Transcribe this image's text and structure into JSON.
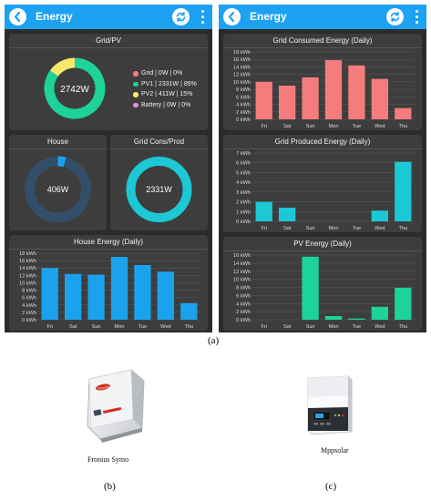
{
  "screens": [
    {
      "title": "Energy",
      "donuts": [
        {
          "title": "Grid/PV",
          "center": "2742W",
          "segments": [
            {
              "label": "Grid",
              "value": 0,
              "color": "#f47c7c"
            },
            {
              "label": "PV1",
              "value": 85,
              "color": "#1dd39a"
            },
            {
              "label": "PV2",
              "value": 15,
              "color": "#f7e76b"
            },
            {
              "label": "Battery",
              "value": 0,
              "color": "#e48ee8"
            }
          ],
          "legend": [
            "Grid | 0W | 0%",
            "PV1 | 2331W | 85%",
            "PV2 | 411W | 15%",
            "Battery | 0W | 0%"
          ]
        },
        {
          "title": "House",
          "center": "406W",
          "segments": [
            {
              "label": "House",
              "value": 4,
              "color": "#1aa3ec"
            },
            {
              "label": "Rest",
              "value": 96,
              "color": "#334e68"
            }
          ]
        },
        {
          "title": "Grid Cons/Prod",
          "center": "2331W",
          "segments": [
            {
              "label": "Grid",
              "value": 100,
              "color": "#1cc8d4"
            }
          ]
        }
      ]
    },
    {
      "title": "Energy"
    }
  ],
  "chart_data": [
    {
      "type": "bar",
      "title": "House Energy (Daily)",
      "categories": [
        "Fri",
        "Sat",
        "Sun",
        "Mon",
        "Tue",
        "Wed",
        "Thu"
      ],
      "values": [
        14,
        12.4,
        12.2,
        17,
        14.8,
        13,
        4.5
      ],
      "ylim": [
        0,
        18
      ],
      "yticks": [
        "0 kWh",
        "2 kWh",
        "4 kWh",
        "6 kWh",
        "8 kWh",
        "10 kWh",
        "12 kWh",
        "14 kWh",
        "16 kWh",
        "18 kWh"
      ],
      "color": "#1aa3ec",
      "grid": true
    },
    {
      "type": "bar",
      "title": "Grid Consumed Energy (Daily)",
      "categories": [
        "Fri",
        "Sat",
        "Sun",
        "Mon",
        "Tue",
        "Wed",
        "Thu"
      ],
      "values": [
        10,
        9,
        11.2,
        15.8,
        14.4,
        10.8,
        3
      ],
      "ylim": [
        0,
        18
      ],
      "yticks": [
        "0 kWh",
        "2 kWh",
        "4 kWh",
        "6 kWh",
        "8 kWh",
        "10 kWh",
        "12 kWh",
        "14 kWh",
        "16 kWh",
        "18 kWh"
      ],
      "color": "#f47c7c",
      "grid": true
    },
    {
      "type": "bar",
      "title": "Grid Produced Energy (Daily)",
      "categories": [
        "Fri",
        "Sat",
        "Sun",
        "Mon",
        "Tue",
        "Wed",
        "Thu"
      ],
      "values": [
        2,
        1.4,
        0,
        0,
        0,
        1.1,
        6.1
      ],
      "ylim": [
        0,
        7
      ],
      "yticks": [
        "0 kWh",
        "1 kWh",
        "2 kWh",
        "3 kWh",
        "4 kWh",
        "5 kWh",
        "6 kWh",
        "7 kWh"
      ],
      "color": "#1cc8d4",
      "grid": true
    },
    {
      "type": "bar",
      "title": "PV Energy (Daily)",
      "categories": [
        "Fri",
        "Sat",
        "Sun",
        "Mon",
        "Tue",
        "Wed",
        "Thu"
      ],
      "values": [
        0,
        0,
        15.6,
        0.9,
        0.3,
        3.2,
        7.9
      ],
      "ylim": [
        0,
        16
      ],
      "yticks": [
        "0 kWh",
        "2 kWh",
        "4 kWh",
        "6 kWh",
        "8 kWh",
        "10 kWh",
        "12 kWh",
        "14 kWh",
        "16 kWh"
      ],
      "color": "#1dd39a",
      "grid": true
    }
  ],
  "captions": {
    "a": "(a)",
    "b": "(b)",
    "c": "(c)"
  },
  "devices": {
    "fronius": "Fronius Symo",
    "mppsolar": "Mppsolar",
    "fronius_brand": "Fronius"
  }
}
